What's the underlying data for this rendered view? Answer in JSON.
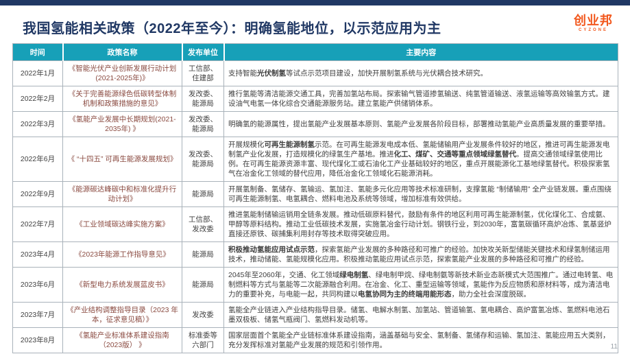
{
  "header": {
    "title": "我国氢能相关政策（2022年至今）：明确氢能地位，以示范应用为主",
    "logo_text": "创业邦",
    "logo_subtext": "CYZONE"
  },
  "colors": {
    "accent_navy": "#203864",
    "table_header_teal": "#17A0B8",
    "logo_orange": "#F2571C",
    "policy_name_red": "#8A4A40",
    "grid_gray": "#A9B2BA",
    "body_text": "#3F3F3F"
  },
  "table": {
    "columns": [
      "时间",
      "政策名称",
      "发布单位",
      "主要内容"
    ],
    "rows": [
      {
        "date": "2022年1月",
        "name": "《智能光伏产业创新发展行动计划(2021-2025年)》",
        "unit": "工信部、住建部",
        "content": [
          {
            "t": "支持智能",
            "b": false
          },
          {
            "t": "光伏制氢",
            "b": true
          },
          {
            "t": "等试点示范项目建设，加快开展制氢系统与光伏耦合技术研究。",
            "b": false
          }
        ]
      },
      {
        "date": "2022年2月",
        "name": "《关于完善能源绿色低碳转型体制机制和政策措施的意见》",
        "unit": "发改委、能源局",
        "content": [
          {
            "t": "推行氢能等清洁能源交通工具，完善加氢站布局。探索输气管道掺氢输送、纯氢管道输送、液氢运输等高效输氢方式。建设油气电氢一体化综合交通能源服务站。建立氢能产供储销体系。",
            "b": false
          }
        ]
      },
      {
        "date": "2022年3月",
        "name": "《氢能产业发展中长期规划(2021-2035年) 》",
        "unit": "发改委、能源局",
        "content": [
          {
            "t": "明确氢的能源属性，提出氢能产业发展基本原则、氢能产业发展各阶段目标，部署推动氢能产业高质量发展的重要举措。",
            "b": false
          }
        ]
      },
      {
        "date": "2022年6月",
        "name": "《 “十四五” 可再生能源发展规划》",
        "unit": "发改委、能源局",
        "content": [
          {
            "t": "开展规模化",
            "b": false
          },
          {
            "t": "可再生能源制氢",
            "b": true
          },
          {
            "t": "示范。在可再生能源发电成本低、氢能储输用产业发展条件较好的地区，推进可再生能源发电制氢产业化发展，打造规模化的绿氢生产基地。推进",
            "b": false
          },
          {
            "t": "化工、煤矿、交通等重点领域绿氢替代",
            "b": true
          },
          {
            "t": "。提高交通领域绿氢使用比例。在可再生能源资源丰富、现代煤化工或石油化工产业基础较好的地区，重点开展能源化工基地绿氢替代。积极探索氢气在冶金化工领域的替代应用，降低冶金化工领域化石能源消耗。",
            "b": false
          }
        ]
      },
      {
        "date": "2022年9月",
        "name": "《能源碳达峰碳中和标准化提升行动计划》",
        "unit": "能源局",
        "content": [
          {
            "t": "开展氢制备、氢储存、氢输运、氢加注、氢能多元化应用等技术标准研制，支撑氢能 “制储输用” 全产业链发展。重点围绕可再生能源制氢、电氢耦合、燃料电池及系统等领域，增加标准有效供给。",
            "b": false
          }
        ]
      },
      {
        "date": "2022年7月",
        "name": "《工业领域碳达峰实施方案》",
        "unit": "工信部、发改委",
        "content": [
          {
            "t": "推进氢能制储输运销用全链条发展。推动低碳原料替代，鼓励有条件的地区利用可再生能源制氢，优化煤化工、合成氨、甲醇等原料结构。推动工业低碳技术发展，实施氢冶金行动计划。钢铁行业，到2030年，富氢碳循环高炉冶炼、氢基竖炉直接还原铁、碳捕集利用封存等技术取得突破应用。",
            "b": false
          }
        ]
      },
      {
        "date": "2023年4月",
        "name": "《2023年能源工作指导意见》",
        "unit": "能源局",
        "content": [
          {
            "t": "积极推动氢能应用试点示范",
            "b": true
          },
          {
            "t": "，探索氢能产业发展的多种路径和可推广的经验。加快攻关新型储能关键技术和绿氢制储运用技术，推动储能、氢能规模化应用。积极推动氢能应用试点示范，探索氢能产业发展的多种路径和可推广的经验。",
            "b": false
          }
        ]
      },
      {
        "date": "2023年6月",
        "name": "《新型电力系统发展蓝皮书》",
        "unit": "能源局",
        "content": [
          {
            "t": "2045年至2060年，交通、化工领域",
            "b": false
          },
          {
            "t": "绿电制氢",
            "b": true
          },
          {
            "t": "、绿电制甲烷、绿电制氨等新技术新业态新模式大范围推广。通过电转氢、电制燃料等方式与氢能等二次能源融合利用。在冶金、化工、重型运输等领域，氢能作为反应物质和原材料等，成为清洁电力的重要补充，与电能一起，共同构建以",
            "b": false
          },
          {
            "t": "电氢协同为主的终端用能形态",
            "b": true
          },
          {
            "t": "，助力全社会深度脱碳。",
            "b": false
          }
        ]
      },
      {
        "date": "2023年7月",
        "name": "《产业结构调整指导目录（2023 年本，征求意见稿）》",
        "unit": "发改委",
        "content": [
          {
            "t": "氢能全产业链进入产业结构指导目录。储氢、电解水制氢、加氢站、管道输氢、氢电耦合、高炉富氢冶炼、氢燃料电池石墨双极板、储氢气瓶阀门、氢燃料发动机等。",
            "b": false
          }
        ]
      },
      {
        "date": "2023年8月",
        "name": "《氢能产业标准体系建设指南（2023版） 》",
        "unit": "标准委等六部门",
        "content": [
          {
            "t": "国家层面首个氢能全产业链标准体系建设指南，涵盖基础与安全、氢制备、氢储存和运输、氢加注、氢能应用五大类别，充分发挥标准对氢能产业发展的规范和引领作用。",
            "b": false
          }
        ]
      }
    ]
  },
  "page_number": "11"
}
